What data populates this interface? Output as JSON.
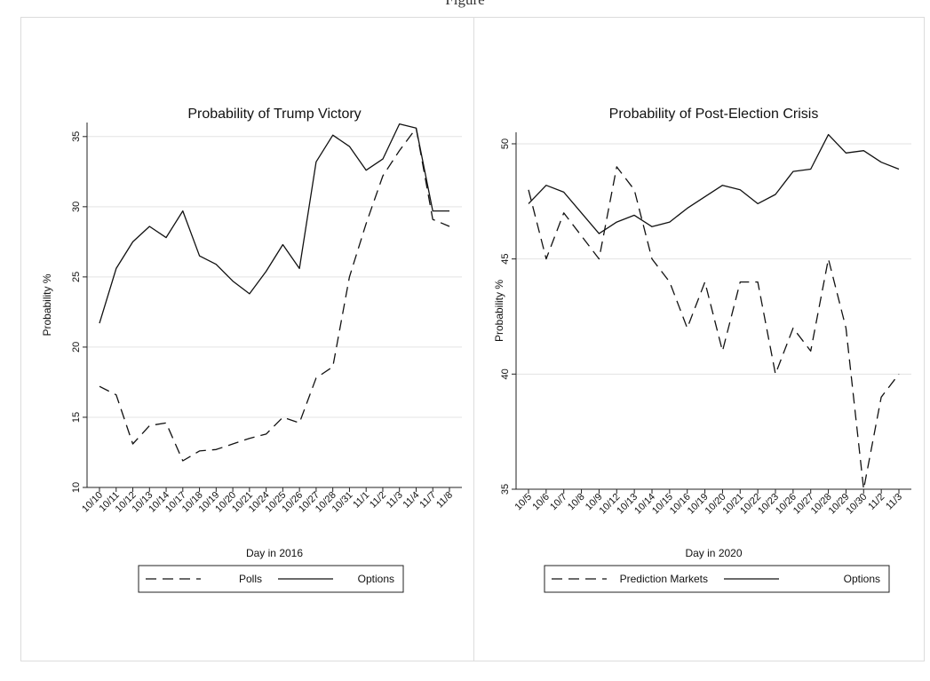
{
  "caption": {
    "text": "Figure"
  },
  "chart_data": [
    {
      "type": "line",
      "title": "Probability of Trump Victory",
      "xlabel": "Day in 2016",
      "ylabel": "Probability %",
      "categories": [
        "10/10",
        "10/11",
        "10/12",
        "10/13",
        "10/14",
        "10/17",
        "10/18",
        "10/19",
        "10/20",
        "10/21",
        "10/24",
        "10/25",
        "10/26",
        "10/27",
        "10/28",
        "10/31",
        "11/1",
        "11/2",
        "11/3",
        "11/4",
        "11/7",
        "11/8"
      ],
      "ylim": [
        10,
        36
      ],
      "yticks": [
        10,
        15,
        20,
        25,
        30,
        35
      ],
      "grid": true,
      "legend_position": "bottom",
      "series": [
        {
          "name": "Polls",
          "style": "dashed",
          "values": [
            17.2,
            16.6,
            13.1,
            14.4,
            14.6,
            11.9,
            12.6,
            12.7,
            13.1,
            13.5,
            13.8,
            15.0,
            14.6,
            17.8,
            18.6,
            25.0,
            28.8,
            32.2,
            34.0,
            35.6,
            29.1,
            28.6
          ]
        },
        {
          "name": "Options",
          "style": "solid",
          "values": [
            21.7,
            25.6,
            27.5,
            28.6,
            27.8,
            29.7,
            26.5,
            25.9,
            24.7,
            23.8,
            25.4,
            27.3,
            25.6,
            33.2,
            35.1,
            34.3,
            32.6,
            33.4,
            35.9,
            35.6,
            29.7,
            29.7
          ]
        }
      ]
    },
    {
      "type": "line",
      "title": "Probability of Post-Election Crisis",
      "xlabel": "Day in 2020",
      "ylabel": "Probability %",
      "categories": [
        "10/5",
        "10/6",
        "10/7",
        "10/8",
        "10/9",
        "10/12",
        "10/13",
        "10/14",
        "10/15",
        "10/16",
        "10/19",
        "10/20",
        "10/21",
        "10/22",
        "10/23",
        "10/26",
        "10/27",
        "10/28",
        "10/29",
        "10/30",
        "11/2",
        "11/3"
      ],
      "ylim": [
        35,
        50.5
      ],
      "yticks": [
        35,
        40,
        45,
        50
      ],
      "grid": true,
      "legend_position": "bottom",
      "series": [
        {
          "name": "Prediction Markets",
          "style": "dashed",
          "values": [
            48.0,
            45.0,
            47.0,
            46.0,
            45.0,
            49.0,
            48.0,
            45.0,
            44.0,
            42.0,
            44.0,
            41.0,
            44.0,
            44.0,
            40.0,
            42.0,
            41.0,
            45.0,
            42.0,
            35.0,
            39.0,
            40.0
          ]
        },
        {
          "name": "Options",
          "style": "solid",
          "values": [
            47.4,
            48.2,
            47.9,
            47.0,
            46.1,
            46.6,
            46.9,
            46.4,
            46.6,
            47.2,
            47.7,
            48.2,
            48.0,
            47.4,
            47.8,
            48.8,
            48.9,
            50.4,
            49.6,
            49.7,
            49.2,
            48.9
          ]
        }
      ]
    }
  ]
}
